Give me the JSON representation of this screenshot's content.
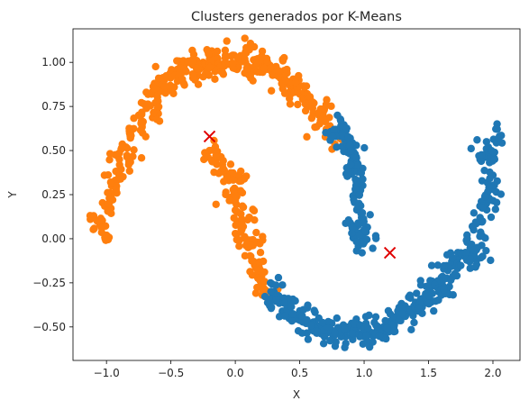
{
  "chart_data": {
    "type": "scatter",
    "title": "Clusters generados por K-Means",
    "xlabel": "X",
    "ylabel": "Y",
    "xlim": [
      -1.26,
      2.21
    ],
    "ylim": [
      -0.69,
      1.19
    ],
    "xticks": [
      -1.0,
      -0.5,
      0.0,
      0.5,
      1.0,
      1.5,
      2.0
    ],
    "xtick_labels": [
      "−1.0",
      "−0.5",
      "0.0",
      "0.5",
      "1.0",
      "1.5",
      "2.0"
    ],
    "yticks": [
      -0.5,
      -0.25,
      0.0,
      0.25,
      0.5,
      0.75,
      1.0
    ],
    "ytick_labels": [
      "−0.50",
      "−0.25",
      "0.00",
      "0.25",
      "0.50",
      "0.75",
      "1.00"
    ],
    "grid": false,
    "legend": "none",
    "colors": {
      "cluster_1": "#ff7f0e",
      "cluster_2": "#1f77b4",
      "centroids": "#e00000"
    },
    "clusters": [
      {
        "color_key": "cluster_1",
        "x": [
          -1.1,
          -1.0,
          -0.98,
          -0.95,
          -0.9,
          -0.85,
          -0.8,
          -0.75,
          -0.7,
          -0.65,
          -0.6,
          -0.55,
          -0.5,
          -0.45,
          -0.4,
          -0.35,
          -0.3,
          -0.25,
          -0.2,
          -0.15,
          -0.1,
          -0.05,
          0.0,
          0.05,
          0.1,
          0.15,
          0.2,
          0.25,
          0.3,
          0.35,
          0.4,
          0.45,
          0.5,
          0.55,
          0.6,
          0.65,
          0.7,
          0.75,
          0.78,
          -0.2,
          -0.15,
          -0.1,
          -0.05,
          0.0,
          0.0,
          0.02,
          0.05,
          0.05,
          0.08,
          0.1,
          0.12,
          0.15,
          0.18,
          0.2,
          0.22,
          -0.9,
          -0.6,
          -0.3,
          0.1,
          0.4,
          -1.05,
          -0.97,
          -0.92,
          -0.82,
          -0.72,
          -0.62,
          -0.52,
          -0.42,
          -0.32,
          -0.22,
          -0.12,
          -0.02,
          0.08,
          0.18,
          0.28,
          0.38,
          0.48,
          0.58,
          0.68,
          -0.1,
          0.03,
          0.11,
          0.17
        ],
        "y": [
          0.13,
          0.02,
          0.2,
          0.3,
          0.38,
          0.52,
          0.62,
          0.7,
          0.76,
          0.82,
          0.86,
          0.9,
          0.94,
          0.96,
          0.98,
          1.0,
          1.01,
          1.0,
          1.02,
          1.0,
          0.99,
          0.99,
          0.98,
          1.03,
          0.97,
          0.95,
          1.0,
          0.97,
          0.93,
          0.91,
          0.88,
          0.85,
          0.82,
          0.78,
          0.74,
          0.7,
          0.68,
          0.62,
          0.58,
          0.5,
          0.45,
          0.38,
          0.33,
          0.28,
          0.22,
          0.15,
          0.1,
          0.05,
          0.0,
          -0.05,
          -0.1,
          -0.15,
          -0.2,
          -0.25,
          -0.28,
          0.45,
          0.78,
          0.92,
          1.08,
          0.96,
          0.08,
          0.25,
          0.33,
          0.46,
          0.6,
          0.7,
          0.84,
          0.9,
          0.93,
          0.95,
          0.97,
          1.04,
          1.0,
          0.99,
          0.95,
          0.92,
          0.88,
          0.8,
          0.71,
          0.42,
          0.36,
          0.12,
          -0.02
        ],
        "spread": 0.035
      },
      {
        "color_key": "cluster_2",
        "x": [
          0.8,
          0.85,
          0.88,
          0.9,
          0.92,
          0.94,
          0.95,
          0.96,
          0.98,
          1.0,
          1.0,
          1.0,
          0.9,
          0.3,
          0.35,
          0.4,
          0.45,
          0.5,
          0.55,
          0.6,
          0.65,
          0.7,
          0.75,
          0.8,
          0.85,
          0.9,
          0.95,
          1.0,
          1.05,
          1.1,
          1.15,
          1.2,
          1.25,
          1.3,
          1.35,
          1.4,
          1.45,
          1.5,
          1.55,
          1.6,
          1.65,
          1.7,
          1.75,
          1.8,
          1.85,
          1.9,
          1.95,
          2.0,
          2.0,
          2.0,
          1.98,
          1.95,
          1.9,
          0.27,
          0.82,
          1.6,
          1.92,
          2.05,
          0.78,
          0.87,
          0.93,
          0.97,
          0.32,
          0.42,
          0.52,
          0.62,
          0.72,
          0.82,
          0.92,
          1.02,
          1.12,
          1.22,
          1.32,
          1.42,
          1.52,
          1.62,
          1.72,
          1.82,
          1.88,
          1.97
        ],
        "y": [
          0.6,
          0.56,
          0.5,
          0.44,
          0.38,
          0.32,
          0.26,
          0.2,
          0.12,
          0.05,
          0.0,
          -0.02,
          0.08,
          -0.3,
          -0.35,
          -0.4,
          -0.43,
          -0.45,
          -0.48,
          -0.5,
          -0.52,
          -0.53,
          -0.52,
          -0.53,
          -0.52,
          -0.5,
          -0.5,
          -0.52,
          -0.53,
          -0.52,
          -0.5,
          -0.47,
          -0.44,
          -0.42,
          -0.4,
          -0.36,
          -0.34,
          -0.3,
          -0.26,
          -0.22,
          -0.18,
          -0.12,
          -0.08,
          -0.02,
          0.05,
          0.12,
          0.2,
          0.28,
          0.36,
          0.45,
          0.5,
          0.55,
          0.45,
          -0.35,
          0.64,
          -0.3,
          -0.1,
          0.58,
          0.58,
          0.54,
          0.47,
          0.4,
          -0.32,
          -0.41,
          -0.46,
          -0.51,
          -0.52,
          -0.53,
          -0.51,
          -0.51,
          -0.53,
          -0.49,
          -0.44,
          -0.41,
          -0.36,
          -0.29,
          -0.21,
          -0.13,
          -0.05,
          0.23
        ],
        "spread": 0.04
      }
    ],
    "centroids": {
      "color_key": "centroids",
      "x": [
        -0.2,
        1.2
      ],
      "y": [
        0.58,
        -0.08
      ],
      "marker": "x"
    }
  }
}
